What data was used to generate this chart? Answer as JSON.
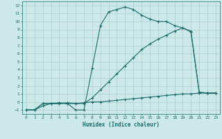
{
  "xlabel": "Humidex (Indice chaleur)",
  "bg_color": "#cce8e8",
  "line_color": "#1a6b6b",
  "grid_color": "#a0c8c8",
  "xlim": [
    -0.5,
    23.5
  ],
  "ylim": [
    -1.5,
    12.5
  ],
  "xticks": [
    0,
    1,
    2,
    3,
    4,
    5,
    6,
    7,
    8,
    9,
    10,
    11,
    12,
    13,
    14,
    15,
    16,
    17,
    18,
    19,
    20,
    21,
    22,
    23
  ],
  "yticks": [
    -1,
    0,
    1,
    2,
    3,
    4,
    5,
    6,
    7,
    8,
    9,
    10,
    11,
    12
  ],
  "curve1_x": [
    0,
    1,
    2,
    3,
    4,
    5,
    6,
    7,
    8,
    9,
    10,
    11,
    12,
    13,
    14,
    15,
    16,
    17,
    18,
    19,
    20,
    21,
    22,
    23
  ],
  "curve1_y": [
    -1,
    -1,
    -0.2,
    -0.2,
    -0.2,
    -0.1,
    -0.2,
    -0.1,
    0.0,
    0.0,
    0.1,
    0.2,
    0.3,
    0.4,
    0.5,
    0.6,
    0.7,
    0.8,
    0.9,
    1.0,
    1.0,
    1.1,
    1.1,
    1.1
  ],
  "curve2_x": [
    0,
    1,
    2,
    3,
    4,
    5,
    6,
    7,
    8,
    9,
    10,
    11,
    12,
    13,
    14,
    15,
    16,
    17,
    18,
    19,
    20,
    21,
    22,
    23
  ],
  "curve2_y": [
    -1,
    -1,
    -0.5,
    -0.2,
    -0.2,
    -0.2,
    -0.2,
    -0.2,
    0.5,
    1.5,
    2.5,
    3.5,
    4.5,
    5.5,
    6.5,
    7.2,
    7.8,
    8.3,
    8.8,
    9.2,
    8.7,
    1.2,
    1.1,
    1.1
  ],
  "curve3_x": [
    0,
    1,
    2,
    3,
    4,
    5,
    6,
    7,
    8,
    9,
    10,
    11,
    12,
    13,
    14,
    15,
    16,
    17,
    18,
    19,
    20,
    21,
    22,
    23
  ],
  "curve3_y": [
    -1,
    -1,
    -0.2,
    -0.2,
    -0.1,
    -0.2,
    -1.0,
    -1.0,
    4.2,
    9.5,
    11.2,
    11.5,
    11.8,
    11.5,
    10.8,
    10.3,
    10.0,
    10.0,
    9.5,
    9.2,
    8.8,
    1.2,
    1.1,
    1.1
  ]
}
